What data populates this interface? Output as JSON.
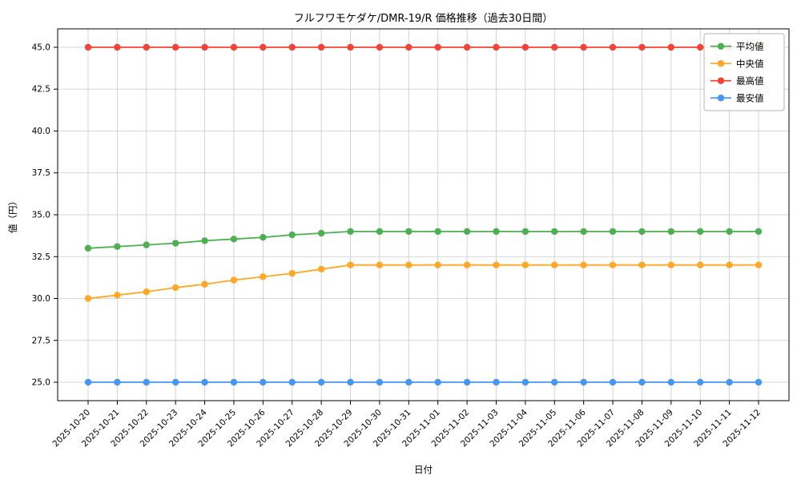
{
  "chart_data": {
    "type": "line",
    "title": "フルフワモケダケ/DMR-19/R 価格推移（過去30日間）",
    "xlabel": "日付",
    "ylabel": "値（円）",
    "grid": true,
    "legend_position": "upper right",
    "categories": [
      "2025-10-20",
      "2025-10-21",
      "2025-10-22",
      "2025-10-23",
      "2025-10-24",
      "2025-10-25",
      "2025-10-26",
      "2025-10-27",
      "2025-10-28",
      "2025-10-29",
      "2025-10-30",
      "2025-10-31",
      "2025-11-01",
      "2025-11-02",
      "2025-11-03",
      "2025-11-04",
      "2025-11-05",
      "2025-11-06",
      "2025-11-07",
      "2025-11-08",
      "2025-11-09",
      "2025-11-10",
      "2025-11-11",
      "2025-11-12"
    ],
    "series": [
      {
        "name": "平均値",
        "color": "#4caf50",
        "values": [
          33.0,
          33.1,
          33.2,
          33.3,
          33.45,
          33.55,
          33.65,
          33.8,
          33.9,
          34.0,
          34.0,
          34.0,
          34.0,
          34.0,
          34.0,
          34.0,
          34.0,
          34.0,
          34.0,
          34.0,
          34.0,
          34.0,
          34.0,
          34.0
        ]
      },
      {
        "name": "中央値",
        "color": "#ffa726",
        "values": [
          30.0,
          30.2,
          30.4,
          30.65,
          30.85,
          31.1,
          31.3,
          31.5,
          31.75,
          32.0,
          32.0,
          32.0,
          32.0,
          32.0,
          32.0,
          32.0,
          32.0,
          32.0,
          32.0,
          32.0,
          32.0,
          32.0,
          32.0,
          32.0
        ]
      },
      {
        "name": "最高値",
        "color": "#f44336",
        "values": [
          45.0,
          45.0,
          45.0,
          45.0,
          45.0,
          45.0,
          45.0,
          45.0,
          45.0,
          45.0,
          45.0,
          45.0,
          45.0,
          45.0,
          45.0,
          45.0,
          45.0,
          45.0,
          45.0,
          45.0,
          45.0,
          45.0,
          45.0,
          45.0
        ]
      },
      {
        "name": "最安値",
        "color": "#4596f5",
        "values": [
          25.0,
          25.0,
          25.0,
          25.0,
          25.0,
          25.0,
          25.0,
          25.0,
          25.0,
          25.0,
          25.0,
          25.0,
          25.0,
          25.0,
          25.0,
          25.0,
          25.0,
          25.0,
          25.0,
          25.0,
          25.0,
          25.0,
          25.0,
          25.0
        ]
      }
    ],
    "yticks": [
      25.0,
      27.5,
      30.0,
      32.5,
      35.0,
      37.5,
      40.0,
      42.5,
      45.0
    ],
    "ylim": [
      23.9,
      46.1
    ]
  }
}
